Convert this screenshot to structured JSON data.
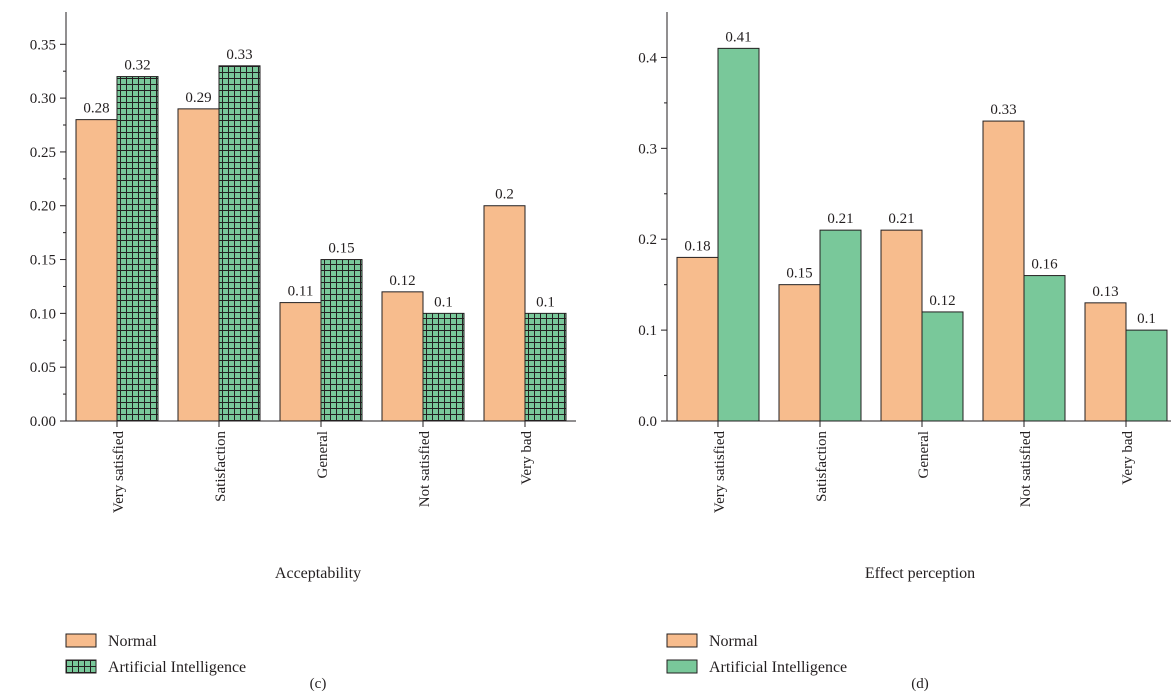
{
  "colors": {
    "normal": "#f7bc8d",
    "ai": "#79c89a",
    "axis": "#231f20",
    "edge": "#231f20"
  },
  "chart_data": [
    {
      "type": "bar",
      "panel_label": "(c)",
      "categories": [
        "Very satisfied",
        "Satisfaction",
        "General",
        "Not satisfied",
        "Very bad"
      ],
      "xlabel": "Acceptability",
      "ylabel": "",
      "ylim": [
        0,
        0.38
      ],
      "yticks": [
        0.0,
        0.05,
        0.1,
        0.15,
        0.2,
        0.25,
        0.3,
        0.35
      ],
      "ytick_labels": [
        "0.00",
        "0.05",
        "0.10",
        "0.15",
        "0.20",
        "0.25",
        "0.30",
        "0.35"
      ],
      "grid": false,
      "legend_position": "below-left",
      "series": [
        {
          "name": "Normal",
          "pattern": "solid",
          "values": [
            0.28,
            0.29,
            0.11,
            0.12,
            0.2
          ],
          "labels": [
            "0.28",
            "0.29",
            "0.11",
            "0.12",
            "0.2"
          ]
        },
        {
          "name": "Artificial Intelligence",
          "pattern": "grid",
          "values": [
            0.32,
            0.33,
            0.15,
            0.1,
            0.1
          ],
          "labels": [
            "0.32",
            "0.33",
            "0.15",
            "0.1",
            "0.1"
          ]
        }
      ]
    },
    {
      "type": "bar",
      "panel_label": "(d)",
      "categories": [
        "Very satisfied",
        "Satisfaction",
        "General",
        "Not satisfied",
        "Very bad"
      ],
      "xlabel": "Effect perception",
      "ylabel": "",
      "ylim": [
        0,
        0.45
      ],
      "yticks": [
        0.0,
        0.1,
        0.2,
        0.3,
        0.4
      ],
      "ytick_labels": [
        "0.0",
        "0.1",
        "0.2",
        "0.3",
        "0.4"
      ],
      "grid": false,
      "legend_position": "below-left",
      "series": [
        {
          "name": "Normal",
          "pattern": "solid",
          "values": [
            0.18,
            0.15,
            0.21,
            0.33,
            0.13
          ],
          "labels": [
            "0.18",
            "0.15",
            "0.21",
            "0.33",
            "0.13"
          ]
        },
        {
          "name": "Artificial Intelligence",
          "pattern": "solid",
          "values": [
            0.41,
            0.21,
            0.12,
            0.16,
            0.1
          ],
          "labels": [
            "0.41",
            "0.21",
            "0.12",
            "0.16",
            "0.1"
          ]
        }
      ]
    }
  ]
}
